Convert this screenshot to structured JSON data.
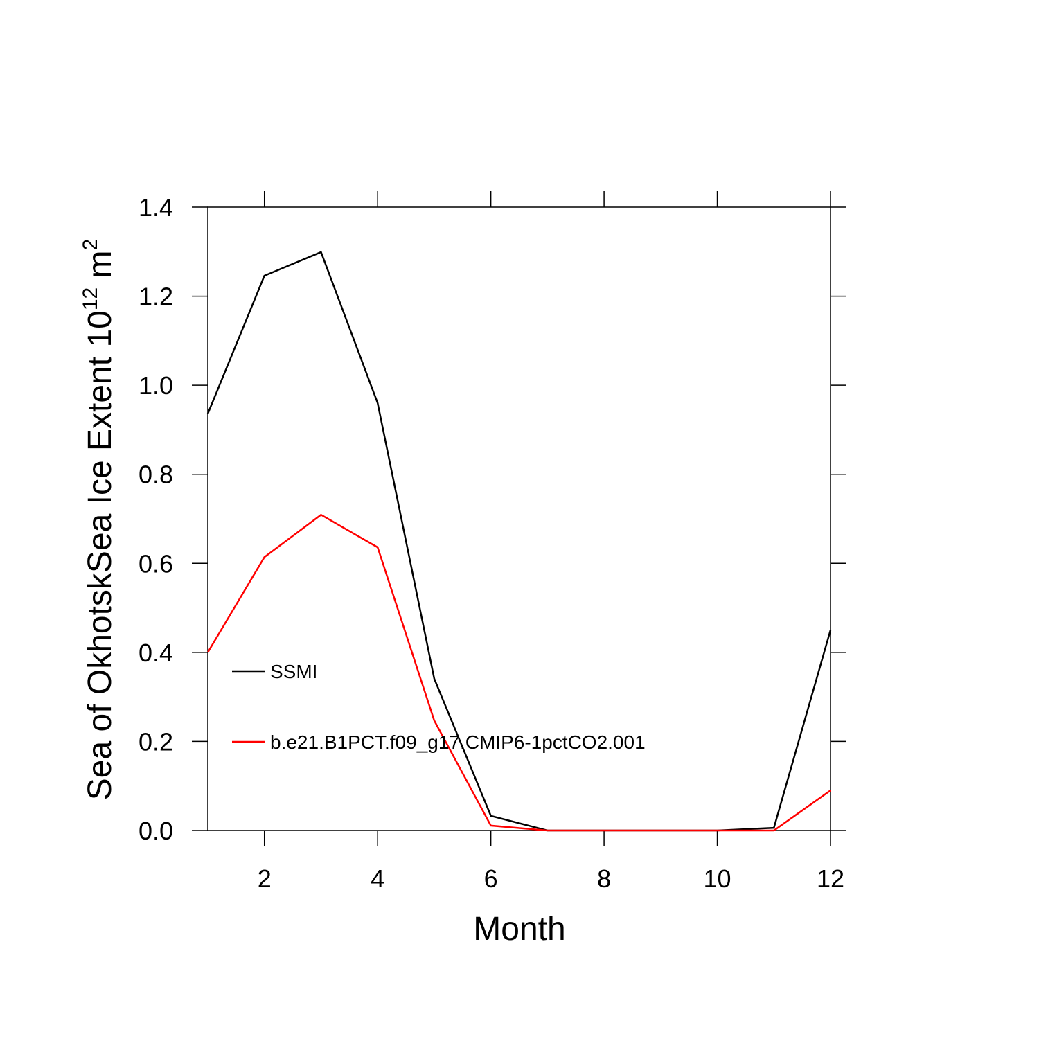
{
  "chart_data": {
    "type": "line",
    "xlabel": "Month",
    "ylabel": {
      "text": "Sea of OkhotskSea Ice Extent 10",
      "exponent": "12",
      "unit": "m",
      "unit_exponent": "2"
    },
    "x": [
      1,
      2,
      3,
      4,
      5,
      6,
      7,
      8,
      9,
      10,
      11,
      12
    ],
    "series": [
      {
        "name": "SSMI",
        "color": "#000000",
        "values": [
          0.936,
          1.246,
          1.299,
          0.96,
          0.341,
          0.033,
          0,
          0,
          0,
          0,
          0.006,
          0.45
        ]
      },
      {
        "name": "b.e21.B1PCT.f09_g17.CMIP6-1pctCO2.001",
        "color": "#ff0000",
        "values": [
          0.4,
          0.614,
          0.709,
          0.636,
          0.247,
          0.011,
          0,
          0,
          0,
          0,
          0,
          0.09
        ]
      }
    ],
    "xlim": [
      1,
      12
    ],
    "xticks": [
      2,
      4,
      6,
      8,
      10,
      12
    ],
    "ylim": [
      0,
      1.4
    ],
    "yticks": [
      {
        "value": 0,
        "label": "0.0"
      },
      0.2,
      0.4,
      0.6,
      0.8,
      {
        "value": 1,
        "label": "1.0"
      },
      1.2,
      1.4
    ],
    "legend": "lower left"
  }
}
